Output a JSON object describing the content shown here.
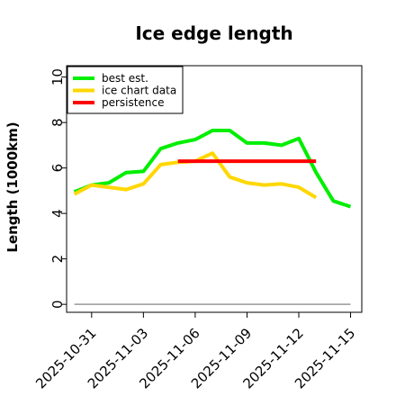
{
  "chart_data": {
    "type": "line",
    "title": "Ice edge length",
    "xlabel": "",
    "ylabel": "Length (1000km)",
    "ylim": [
      0,
      10
    ],
    "yticks": [
      0,
      2,
      4,
      6,
      8,
      10
    ],
    "xlim": [
      "2025-10-29",
      "2025-11-16"
    ],
    "xticks": [
      "2025-10-31",
      "2025-11-03",
      "2025-11-06",
      "2025-11-09",
      "2025-11-12",
      "2025-11-15"
    ],
    "legend_position": "top-left",
    "grid": false,
    "series": [
      {
        "name": "best est.",
        "color": "#00ee00",
        "x": [
          "2025-10-30",
          "2025-10-31",
          "2025-11-01",
          "2025-11-02",
          "2025-11-03",
          "2025-11-04",
          "2025-11-05",
          "2025-11-06",
          "2025-11-07",
          "2025-11-08",
          "2025-11-09",
          "2025-11-10",
          "2025-11-11",
          "2025-11-12",
          "2025-11-13",
          "2025-11-14",
          "2025-11-15"
        ],
        "y": [
          4.95,
          5.25,
          5.35,
          5.8,
          5.85,
          6.85,
          7.1,
          7.25,
          7.65,
          7.65,
          7.1,
          7.1,
          7.0,
          7.3,
          5.8,
          4.55,
          4.3
        ]
      },
      {
        "name": "ice chart data",
        "color": "#ffd700",
        "x": [
          "2025-10-30",
          "2025-10-31",
          "2025-11-01",
          "2025-11-02",
          "2025-11-03",
          "2025-11-04",
          "2025-11-05",
          "2025-11-06",
          "2025-11-07",
          "2025-11-08",
          "2025-11-09",
          "2025-11-10",
          "2025-11-11",
          "2025-11-12",
          "2025-11-13"
        ],
        "y": [
          4.85,
          5.25,
          5.15,
          5.05,
          5.3,
          6.15,
          6.25,
          6.3,
          6.65,
          5.6,
          5.35,
          5.25,
          5.3,
          5.15,
          4.7
        ]
      },
      {
        "name": "persistence",
        "color": "#ff0000",
        "x": [
          "2025-11-05",
          "2025-11-13"
        ],
        "y": [
          6.3,
          6.3
        ]
      }
    ]
  }
}
